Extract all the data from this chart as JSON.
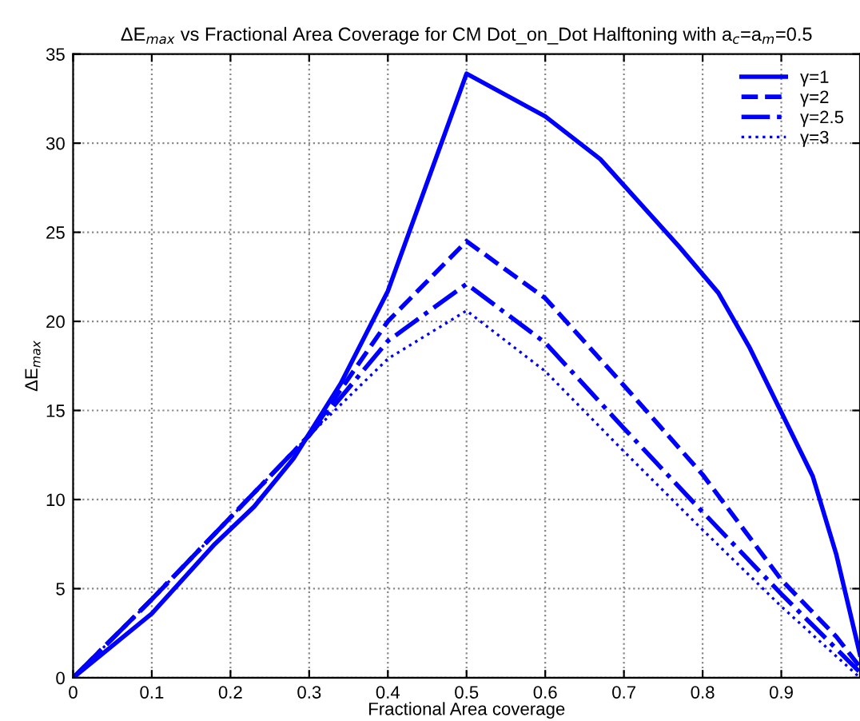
{
  "chart_data": {
    "type": "line",
    "title": "ΔE$_{max}$ vs Fractional Area Coverage for CM Dot_on_Dot Halftoning with a$_{c}$=a$_{m}$=0.5",
    "xlabel": "Fractional Area coverage",
    "ylabel": "ΔE$_{max}$",
    "xlim": [
      0,
      1
    ],
    "ylim": [
      0,
      35
    ],
    "xticks": [
      0,
      0.1,
      0.2,
      0.3,
      0.4,
      0.5,
      0.6,
      0.7,
      0.8,
      0.9
    ],
    "yticks": [
      0,
      5,
      10,
      15,
      20,
      25,
      30,
      35
    ],
    "grid": true,
    "legend": "top right",
    "series": [
      {
        "name": "γ=1",
        "color": "#0000ff",
        "line_style": "solid",
        "x": [
          0,
          0.1,
          0.18,
          0.23,
          0.28,
          0.34,
          0.4,
          0.5,
          0.6,
          0.67,
          0.77,
          0.82,
          0.86,
          0.94,
          0.97,
          1.0
        ],
        "values": [
          0,
          3.6,
          7.5,
          9.6,
          12.3,
          16.5,
          21.7,
          33.9,
          31.5,
          29.1,
          24.2,
          21.6,
          18.5,
          11.3,
          6.9,
          1.3
        ]
      },
      {
        "name": "γ=2",
        "color": "#0000ff",
        "line_style": "dashed",
        "x": [
          0,
          0.1,
          0.2,
          0.3,
          0.4,
          0.5,
          0.6,
          0.7,
          0.8,
          0.9,
          0.97,
          1.0
        ],
        "values": [
          0,
          4.4,
          9.0,
          13.6,
          20.0,
          24.5,
          21.3,
          16.4,
          11.4,
          5.5,
          2.3,
          0.6
        ]
      },
      {
        "name": "γ=2.5",
        "color": "#0000ff",
        "line_style": "dashdot",
        "x": [
          0,
          0.1,
          0.2,
          0.3,
          0.4,
          0.5,
          0.6,
          0.7,
          0.8,
          0.9,
          1.0
        ],
        "values": [
          0,
          4.4,
          9.0,
          13.6,
          18.9,
          22.1,
          18.8,
          14.0,
          9.3,
          4.7,
          0.3
        ]
      },
      {
        "name": "γ=3",
        "color": "#0000ff",
        "line_style": "dotted",
        "x": [
          0,
          0.1,
          0.2,
          0.3,
          0.4,
          0.5,
          0.6,
          0.7,
          0.8,
          0.9,
          1.0
        ],
        "values": [
          0,
          4.4,
          9.0,
          13.6,
          17.9,
          20.6,
          17.2,
          12.7,
          8.3,
          4.0,
          0.0
        ]
      }
    ]
  }
}
